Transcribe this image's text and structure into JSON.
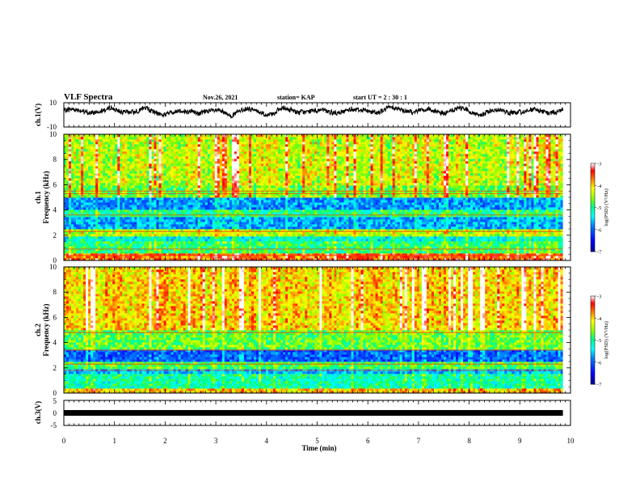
{
  "header": {
    "title": "VLF Spectra",
    "date": "Nov.26, 2021",
    "station": "station= KAP",
    "start": "start  UT  =   2 : 30 : 1"
  },
  "chart_data": [
    {
      "type": "line",
      "name": "ch1-waveform",
      "ylabel": "ch.1(V)",
      "ylim": [
        -10,
        10
      ],
      "ytick_labels": [
        "10",
        "-10"
      ],
      "x_range_min": [
        0,
        9.85
      ],
      "signal": "noisy waveform fluctuating around about 3 V, varying mostly between about -5 and 7 V"
    },
    {
      "type": "heatmap",
      "name": "ch1-spectrogram",
      "ylabel": "ch.1\nFrequency (kHz)",
      "ylim": [
        0,
        10
      ],
      "ytick_labels": [
        "0",
        "2",
        "4",
        "6",
        "8",
        "10"
      ],
      "x_range_min": [
        0,
        9.85
      ],
      "colorbar": {
        "label": "log(PSD) (V²/Hz)",
        "range": [
          -7,
          -3
        ],
        "tick_labels": [
          "-3",
          "-4",
          "-5",
          "-6",
          "-7"
        ],
        "colors": [
          "#00008f",
          "#0000ff",
          "#0080ff",
          "#00ffff",
          "#00ff80",
          "#80ff00",
          "#ffff00",
          "#ff8000",
          "#ff0000",
          "#ffffff"
        ]
      },
      "bands": [
        {
          "f": [
            0,
            0.5
          ],
          "level": -3.6
        },
        {
          "f": [
            0.5,
            1.6
          ],
          "level": -4.9
        },
        {
          "f": [
            1.6,
            2.0
          ],
          "level": -5.3
        },
        {
          "f": [
            2.0,
            2.5
          ],
          "level": -4.4
        },
        {
          "f": [
            2.5,
            3.4
          ],
          "level": -5.7
        },
        {
          "f": [
            3.4,
            4.0
          ],
          "level": -5.0
        },
        {
          "f": [
            4.0,
            5.0
          ],
          "level": -5.8
        },
        {
          "f": [
            5.0,
            6.0
          ],
          "level": -4.6
        },
        {
          "f": [
            6.0,
            10.0
          ],
          "level": -4.3
        }
      ],
      "lines_kHz": [
        0.4,
        0.9,
        2.3,
        3.6,
        5.3,
        5.5
      ]
    },
    {
      "type": "heatmap",
      "name": "ch2-spectrogram",
      "ylabel": "ch.2\nFrequency (kHz)",
      "ylim": [
        0,
        10
      ],
      "ytick_labels": [
        "0",
        "2",
        "4",
        "6",
        "8",
        "10"
      ],
      "x_range_min": [
        0,
        9.85
      ],
      "colorbar": {
        "label": "log(PSD) (V²/Hz)",
        "range": [
          -7,
          -3
        ],
        "tick_labels": [
          "-3",
          "-4",
          "-5",
          "-6",
          "-7"
        ]
      },
      "bands": [
        {
          "f": [
            0,
            0.3
          ],
          "level": -4.0
        },
        {
          "f": [
            0.3,
            1.5
          ],
          "level": -5.1
        },
        {
          "f": [
            1.5,
            2.0
          ],
          "level": -5.6
        },
        {
          "f": [
            2.0,
            2.5
          ],
          "level": -4.8
        },
        {
          "f": [
            2.5,
            3.4
          ],
          "level": -6.0
        },
        {
          "f": [
            3.4,
            5.0
          ],
          "level": -4.7
        },
        {
          "f": [
            5.0,
            10.0
          ],
          "level": -4.0
        }
      ],
      "lines_kHz": [
        1.8,
        2.3,
        3.4,
        4.8
      ]
    },
    {
      "type": "line",
      "name": "ch3-waveform",
      "ylabel": "ch.3(V)",
      "ylim": [
        -5,
        5
      ],
      "ytick_labels": [
        "5",
        "0",
        "-5"
      ],
      "x_range_min": [
        0,
        9.85
      ],
      "signal": "thick flat band near -1 V"
    }
  ],
  "x_axis": {
    "label": "Time  (min)",
    "range": [
      0,
      10
    ],
    "tick_labels": [
      "0",
      "1",
      "2",
      "3",
      "4",
      "5",
      "6",
      "7",
      "8",
      "9",
      "10"
    ]
  }
}
